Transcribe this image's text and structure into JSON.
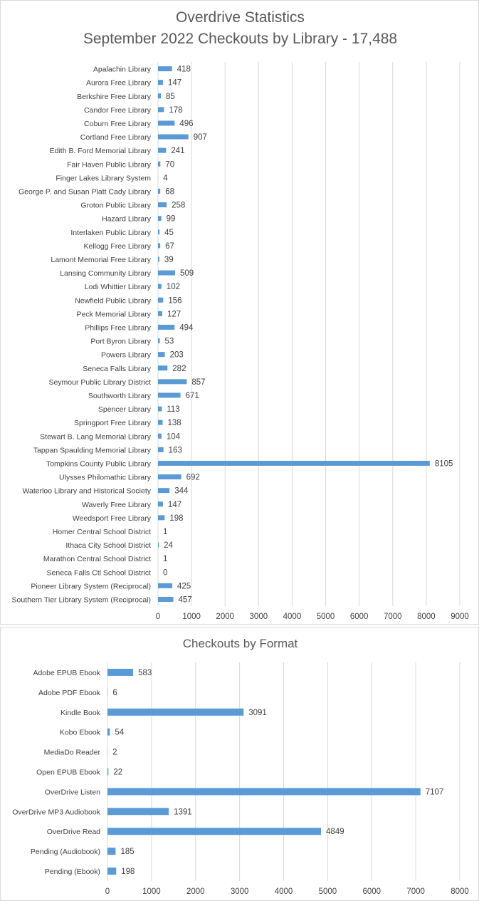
{
  "colors": {
    "bar": "#5b9bd5",
    "grid": "#d9d9d9",
    "text": "#404040",
    "title": "#595959"
  },
  "chart_data": [
    {
      "type": "bar",
      "orientation": "horizontal",
      "title": "Overdrive Statistics",
      "subtitle": "September 2022 Checkouts by Library - 17,488",
      "xlim": [
        0,
        9000
      ],
      "xticks": [
        0,
        1000,
        2000,
        3000,
        4000,
        5000,
        6000,
        7000,
        8000,
        9000
      ],
      "grid": true,
      "data_labels": true,
      "categories": [
        "Apalachin Library",
        "Aurora Free Library",
        "Berkshire Free Library",
        "Candor Free Library",
        "Coburn Free Library",
        "Cortland Free Library",
        "Edith B. Ford Memorial Library",
        "Fair Haven Public Library",
        "Finger Lakes Library System",
        "George P. and Susan Platt Cady Library",
        "Groton Public Library",
        "Hazard Library",
        "Interlaken Public Library",
        "Kellogg Free Library",
        "Lamont Memorial Free Library",
        "Lansing Community Library",
        "Lodi Whittier Library",
        "Newfield Public Library",
        "Peck Memorial Library",
        "Phillips Free Library",
        "Port Byron Library",
        "Powers Library",
        "Seneca Falls Library",
        "Seymour Public Library District",
        "Southworth Library",
        "Spencer Library",
        "Springport Free Library",
        "Stewart B. Lang Memorial Library",
        "Tappan Spaulding Memorial Library",
        "Tompkins County Public Library",
        "Ulysses Philomathic Library",
        "Waterloo Library and Historical Society",
        "Waverly Free Library",
        "Weedsport Free Library",
        "Homer Central School District",
        "Ithaca City School District",
        "Marathon Central School District",
        "Seneca Falls Ctl School District",
        "Pioneer Library System (Reciprocal)",
        "Southern Tier Library System (Reciprocal)"
      ],
      "values": [
        418,
        147,
        85,
        178,
        496,
        907,
        241,
        70,
        4,
        68,
        258,
        99,
        45,
        67,
        39,
        509,
        102,
        156,
        127,
        494,
        53,
        203,
        282,
        857,
        671,
        113,
        138,
        104,
        163,
        8105,
        692,
        344,
        147,
        198,
        1,
        24,
        1,
        0,
        425,
        457
      ]
    },
    {
      "type": "bar",
      "orientation": "horizontal",
      "title": "Checkouts by Format",
      "xlim": [
        0,
        8000
      ],
      "xticks": [
        0,
        1000,
        2000,
        3000,
        4000,
        5000,
        6000,
        7000,
        8000
      ],
      "grid": true,
      "data_labels": true,
      "categories": [
        "Adobe EPUB Ebook",
        "Adobe PDF Ebook",
        "Kindle Book",
        "Kobo Ebook",
        "MediaDo Reader",
        "Open EPUB Ebook",
        "OverDrive Listen",
        "OverDrive MP3 Audiobook",
        "OverDrive Read",
        "Pending (Audiobook)",
        "Pending (Ebook)"
      ],
      "values": [
        583,
        6,
        3091,
        54,
        2,
        22,
        7107,
        1391,
        4849,
        185,
        198
      ]
    }
  ]
}
